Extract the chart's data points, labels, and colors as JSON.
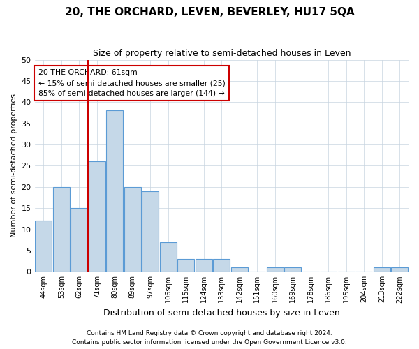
{
  "title": "20, THE ORCHARD, LEVEN, BEVERLEY, HU17 5QA",
  "subtitle": "Size of property relative to semi-detached houses in Leven",
  "xlabel": "Distribution of semi-detached houses by size in Leven",
  "ylabel": "Number of semi-detached properties",
  "categories": [
    "44sqm",
    "53sqm",
    "62sqm",
    "71sqm",
    "80sqm",
    "89sqm",
    "97sqm",
    "106sqm",
    "115sqm",
    "124sqm",
    "133sqm",
    "142sqm",
    "151sqm",
    "160sqm",
    "169sqm",
    "178sqm",
    "186sqm",
    "195sqm",
    "204sqm",
    "213sqm",
    "222sqm"
  ],
  "values": [
    12,
    20,
    15,
    26,
    38,
    20,
    19,
    7,
    3,
    3,
    3,
    1,
    0,
    1,
    1,
    0,
    0,
    0,
    0,
    1,
    1
  ],
  "bar_color": "#c5d8e8",
  "bar_edge_color": "#5b9bd5",
  "property_index": 2,
  "vline_x": 2.5,
  "property_label": "20 THE ORCHARD: 61sqm",
  "smaller_text": "← 15% of semi-detached houses are smaller (25)",
  "larger_text": "85% of semi-detached houses are larger (144) →",
  "vline_color": "#cc0000",
  "annotation_box_color": "#cc0000",
  "ylim": [
    0,
    50
  ],
  "yticks": [
    0,
    5,
    10,
    15,
    20,
    25,
    30,
    35,
    40,
    45,
    50
  ],
  "footer1": "Contains HM Land Registry data © Crown copyright and database right 2024.",
  "footer2": "Contains public sector information licensed under the Open Government Licence v3.0.",
  "background_color": "#ffffff",
  "grid_color": "#c8d4e0"
}
